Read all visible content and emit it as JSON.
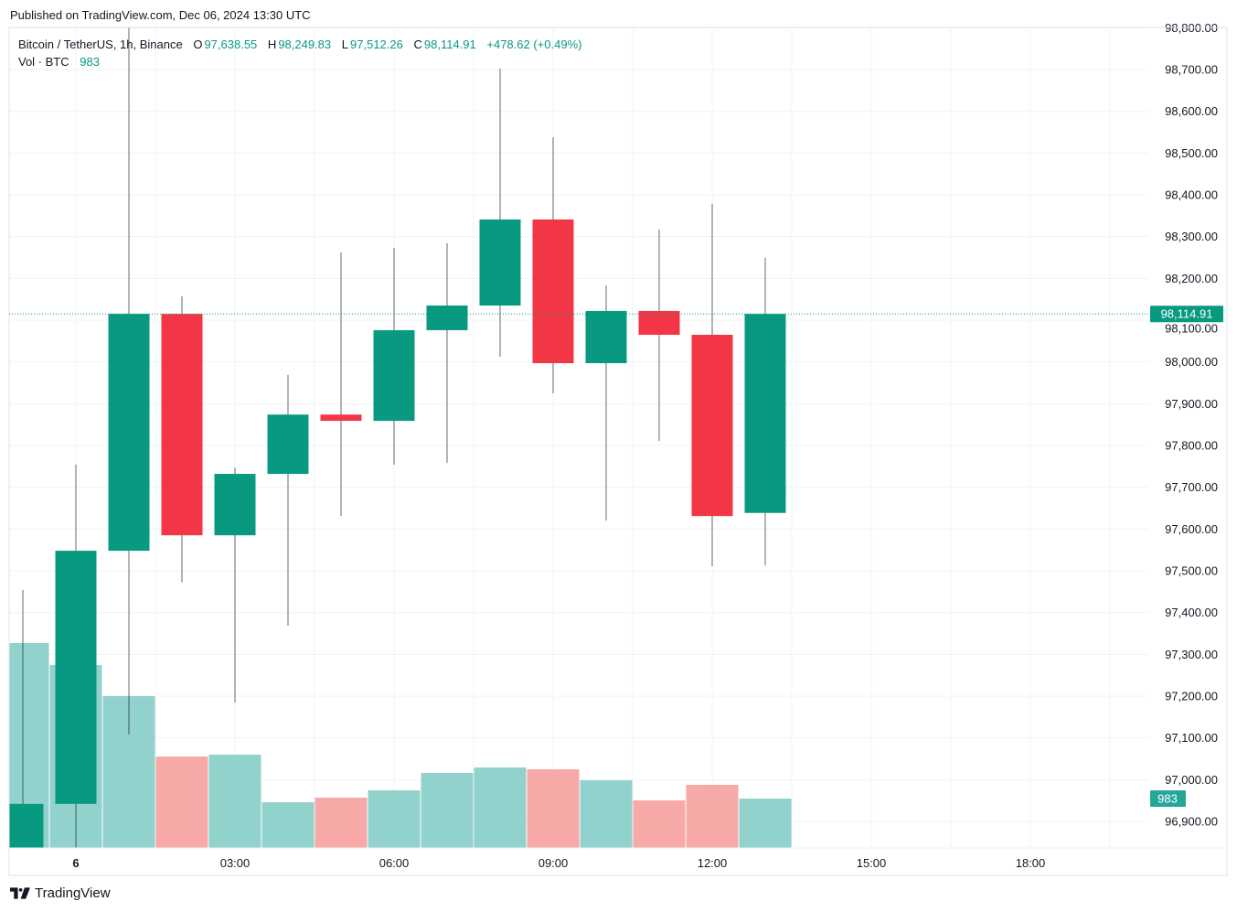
{
  "published": "Published on TradingView.com, Dec 06, 2024 13:30 UTC",
  "legend": {
    "symbol": "Bitcoin / TetherUS, 1h, Binance",
    "open_label": "O",
    "open": "97,638.55",
    "high_label": "H",
    "high": "98,249.83",
    "low_label": "L",
    "low": "97,512.26",
    "close_label": "C",
    "close": "98,114.91",
    "change": "+478.62 (+0.49%)",
    "vol_label": "Vol · BTC",
    "vol": "983"
  },
  "footer": {
    "brand": "TradingView",
    "logo_icon": "tradingview-logo-icon"
  },
  "colors": {
    "up": "#089981",
    "down": "#F23645",
    "vol_up": "#92D2CC",
    "vol_down": "#F7A9A7"
  },
  "chart_data": {
    "type": "candlestick",
    "title": "",
    "ylim": [
      96836,
      98800
    ],
    "grid": true,
    "y_ticks": [
      "96,900.00",
      "97,000.00",
      "97,100.00",
      "97,200.00",
      "97,300.00",
      "97,400.00",
      "97,500.00",
      "97,600.00",
      "97,700.00",
      "97,800.00",
      "97,900.00",
      "98,000.00",
      "98,100.00",
      "98,200.00",
      "98,300.00",
      "98,400.00",
      "98,500.00",
      "98,600.00",
      "98,700.00",
      "98,800.00"
    ],
    "x_ticks": [
      {
        "label": "6",
        "hour": 0,
        "bold": true
      },
      {
        "label": "03:00",
        "hour": 3
      },
      {
        "label": "06:00",
        "hour": 6
      },
      {
        "label": "09:00",
        "hour": 9
      },
      {
        "label": "12:00",
        "hour": 12
      },
      {
        "label": "15:00",
        "hour": 15
      },
      {
        "label": "18:00",
        "hour": 18
      }
    ],
    "last_price_label": "98,114.91",
    "last_price": 98114.91,
    "last_volume_label": "983",
    "candles": [
      {
        "time": "2024-12-05 23:00",
        "hour": -1,
        "o": 96780,
        "h": 97454,
        "l": 96700,
        "c": 96942,
        "v": 4078
      },
      {
        "time": "2024-12-06 00:00",
        "hour": 0,
        "o": 96942,
        "h": 97754,
        "l": 96800,
        "c": 97548,
        "v": 3641
      },
      {
        "time": "2024-12-06 01:00",
        "hour": 1,
        "o": 97548,
        "h": 98850,
        "l": 97108,
        "c": 98115,
        "v": 3022
      },
      {
        "time": "2024-12-06 02:00",
        "hour": 2,
        "o": 98115,
        "h": 98157,
        "l": 97472,
        "c": 97585,
        "v": 1820
      },
      {
        "time": "2024-12-06 03:00",
        "hour": 3,
        "o": 97585,
        "h": 97747,
        "l": 97185,
        "c": 97732,
        "v": 1857
      },
      {
        "time": "2024-12-06 04:00",
        "hour": 4,
        "o": 97732,
        "h": 97969,
        "l": 97369,
        "c": 97874,
        "v": 910
      },
      {
        "time": "2024-12-06 05:00",
        "hour": 5,
        "o": 97874,
        "h": 98262,
        "l": 97631,
        "c": 97859,
        "v": 1001
      },
      {
        "time": "2024-12-06 06:00",
        "hour": 6,
        "o": 97859,
        "h": 98273,
        "l": 97754,
        "c": 98076,
        "v": 1147
      },
      {
        "time": "2024-12-06 07:00",
        "hour": 7,
        "o": 98076,
        "h": 98284,
        "l": 97758,
        "c": 98135,
        "v": 1493
      },
      {
        "time": "2024-12-06 08:00",
        "hour": 8,
        "o": 98135,
        "h": 98702,
        "l": 98012,
        "c": 98341,
        "v": 1602
      },
      {
        "time": "2024-12-06 09:00",
        "hour": 9,
        "o": 98341,
        "h": 98538,
        "l": 97925,
        "c": 97997,
        "v": 1566
      },
      {
        "time": "2024-12-06 10:00",
        "hour": 10,
        "o": 97997,
        "h": 98183,
        "l": 97620,
        "c": 98122,
        "v": 1347
      },
      {
        "time": "2024-12-06 11:00",
        "hour": 11,
        "o": 98122,
        "h": 98317,
        "l": 97811,
        "c": 98065,
        "v": 947
      },
      {
        "time": "2024-12-06 12:00",
        "hour": 12,
        "o": 98065,
        "h": 98378,
        "l": 97511,
        "c": 97631,
        "v": 1256
      },
      {
        "time": "2024-12-06 13:00",
        "hour": 13,
        "o": 97638.55,
        "h": 98249.83,
        "l": 97512.26,
        "c": 98114.91,
        "v": 983
      }
    ]
  }
}
